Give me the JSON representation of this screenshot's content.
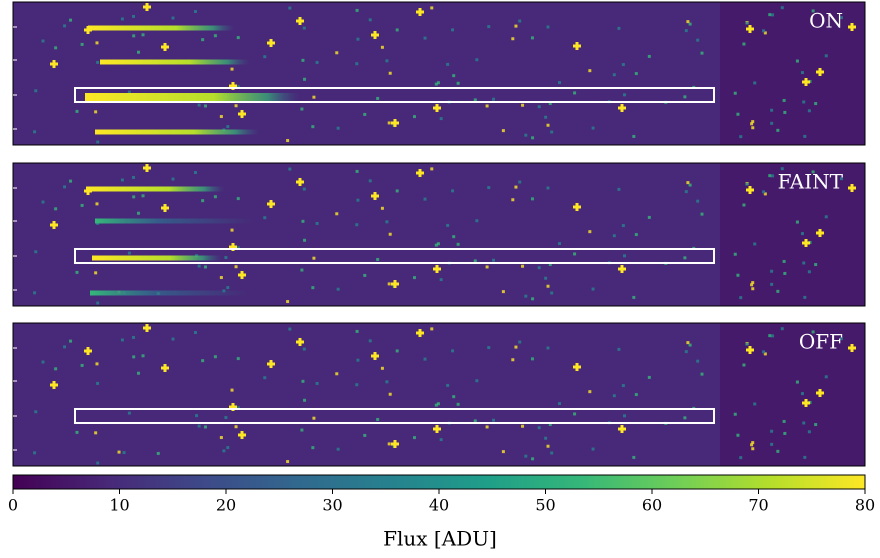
{
  "chart_data": {
    "type": "image",
    "panels": [
      {
        "label": "ON"
      },
      {
        "label": "FAINT"
      },
      {
        "label": "OFF"
      }
    ],
    "colormap": "viridis",
    "colorbar": {
      "label": "Flux [ADU]",
      "lim": [
        0,
        80
      ],
      "ticks": [
        0,
        10,
        20,
        30,
        40,
        50,
        60,
        70,
        80
      ]
    }
  }
}
